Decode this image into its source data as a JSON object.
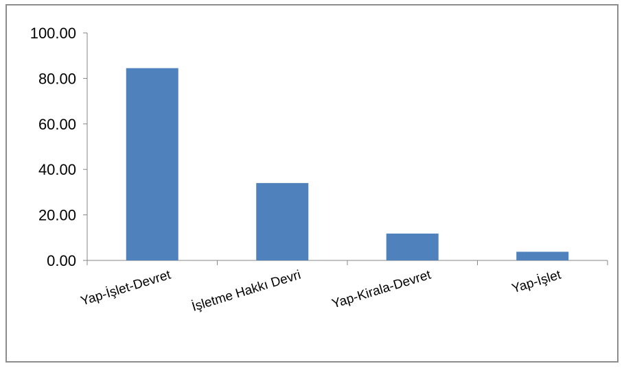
{
  "chart_data": {
    "type": "bar",
    "categories": [
      "Yap-İşlet-Devret",
      "İşletme Hakkı Devri",
      "Yap-Kirala-Devret",
      "Yap-İşlet"
    ],
    "values": [
      84.5,
      34.0,
      11.8,
      3.8
    ],
    "title": "",
    "xlabel": "",
    "ylabel": "",
    "ylim": [
      0,
      100
    ],
    "yticks": [
      "0.00",
      "20.00",
      "40.00",
      "60.00",
      "80.00",
      "100.00"
    ],
    "grid": false,
    "legend": "none",
    "bar_color": "#4f81bd"
  }
}
